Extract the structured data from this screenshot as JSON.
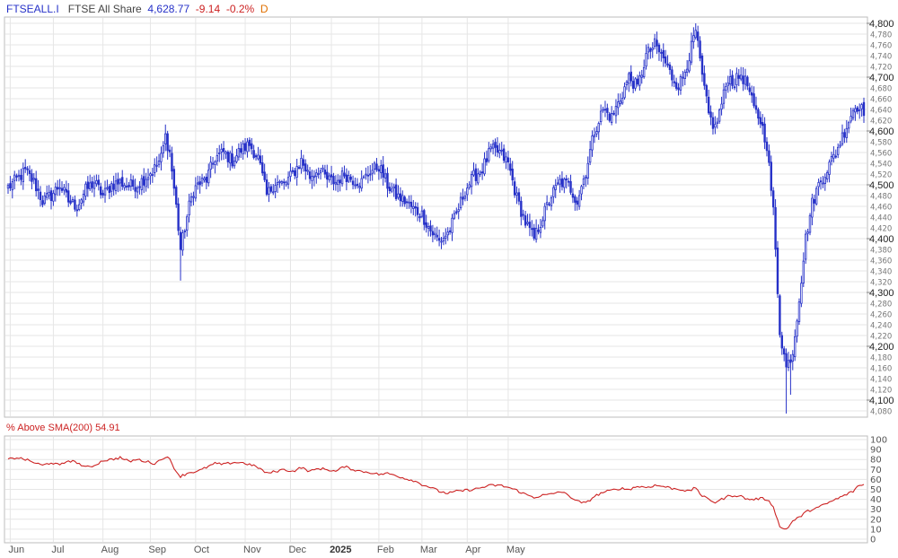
{
  "header": {
    "symbol": "FTSEALL.I",
    "name": "FTSE All Share",
    "last": "4,628.77",
    "change": "-9.14",
    "change_pct": "-0.2%",
    "period": "D"
  },
  "indicator": {
    "label": "% Above SMA(200)",
    "value": "54.91"
  },
  "colors": {
    "candle": "#2631c8",
    "indicator_line": "#cc2222",
    "grid": "#e6e6e6",
    "border": "#bdbdbd",
    "symbol_text": "#2631c8",
    "name_text": "#444444",
    "last_text": "#2631c8",
    "change_text": "#cc2222",
    "period_text": "#e07000"
  },
  "chart_data": [
    {
      "type": "candlestick",
      "series": [
        {
          "name": "FTSEALL.I",
          "close_path": [
            [
              0,
              4495
            ],
            [
              4,
              4510
            ],
            [
              8,
              4525
            ],
            [
              12,
              4505
            ],
            [
              16,
              4470
            ],
            [
              20,
              4480
            ],
            [
              24,
              4500
            ],
            [
              28,
              4470
            ],
            [
              32,
              4460
            ],
            [
              36,
              4490
            ],
            [
              40,
              4505
            ],
            [
              44,
              4480
            ],
            [
              48,
              4500
            ],
            [
              52,
              4505
            ],
            [
              56,
              4498
            ],
            [
              60,
              4500
            ],
            [
              64,
              4515
            ],
            [
              68,
              4530
            ],
            [
              71,
              4550
            ],
            [
              73,
              4590
            ],
            [
              75,
              4560
            ],
            [
              78,
              4460
            ],
            [
              80,
              4380
            ],
            [
              82,
              4420
            ],
            [
              84,
              4460
            ],
            [
              86,
              4490
            ],
            [
              88,
              4500
            ],
            [
              92,
              4510
            ],
            [
              96,
              4550
            ],
            [
              100,
              4560
            ],
            [
              104,
              4545
            ],
            [
              108,
              4565
            ],
            [
              112,
              4575
            ],
            [
              116,
              4550
            ],
            [
              120,
              4480
            ],
            [
              124,
              4505
            ],
            [
              128,
              4500
            ],
            [
              132,
              4520
            ],
            [
              136,
              4545
            ],
            [
              140,
              4515
            ],
            [
              144,
              4530
            ],
            [
              148,
              4510
            ],
            [
              152,
              4505
            ],
            [
              156,
              4520
            ],
            [
              160,
              4510
            ],
            [
              164,
              4505
            ],
            [
              168,
              4525
            ],
            [
              172,
              4535
            ],
            [
              176,
              4500
            ],
            [
              180,
              4480
            ],
            [
              184,
              4470
            ],
            [
              188,
              4455
            ],
            [
              192,
              4445
            ],
            [
              196,
              4415
            ],
            [
              200,
              4395
            ],
            [
              204,
              4410
            ],
            [
              208,
              4445
            ],
            [
              212,
              4490
            ],
            [
              216,
              4515
            ],
            [
              220,
              4530
            ],
            [
              224,
              4565
            ],
            [
              228,
              4560
            ],
            [
              232,
              4540
            ],
            [
              236,
              4475
            ],
            [
              240,
              4430
            ],
            [
              244,
              4400
            ],
            [
              248,
              4440
            ],
            [
              252,
              4480
            ],
            [
              256,
              4505
            ],
            [
              260,
              4500
            ],
            [
              264,
              4470
            ],
            [
              268,
              4525
            ],
            [
              272,
              4600
            ],
            [
              276,
              4640
            ],
            [
              280,
              4625
            ],
            [
              284,
              4660
            ],
            [
              288,
              4700
            ],
            [
              292,
              4680
            ],
            [
              296,
              4740
            ],
            [
              300,
              4760
            ],
            [
              304,
              4735
            ],
            [
              308,
              4700
            ],
            [
              311,
              4685
            ],
            [
              313,
              4700
            ],
            [
              316,
              4740
            ],
            [
              319,
              4785
            ],
            [
              322,
              4700
            ],
            [
              325,
              4630
            ],
            [
              328,
              4605
            ],
            [
              331,
              4650
            ],
            [
              334,
              4700
            ],
            [
              337,
              4690
            ],
            [
              340,
              4705
            ],
            [
              343,
              4685
            ],
            [
              346,
              4640
            ],
            [
              349,
              4620
            ],
            [
              352,
              4575
            ],
            [
              355,
              4450
            ],
            [
              358,
              4230
            ],
            [
              361,
              4160
            ],
            [
              364,
              4190
            ],
            [
              367,
              4290
            ],
            [
              370,
              4400
            ],
            [
              373,
              4465
            ],
            [
              376,
              4500
            ],
            [
              380,
              4530
            ],
            [
              384,
              4560
            ],
            [
              388,
              4600
            ],
            [
              392,
              4640
            ],
            [
              395,
              4650
            ],
            [
              397,
              4628.77
            ]
          ],
          "last_close": 4628.77,
          "day_low": 4075,
          "period_high": 4800
        }
      ],
      "x_tick_labels": [
        "Jun",
        "Jul",
        "Aug",
        "Sep",
        "Oct",
        "Nov",
        "Dec",
        "2025",
        "Feb",
        "Mar",
        "Apr",
        "May"
      ],
      "y_range": [
        4070,
        4810
      ],
      "y_major_ticks": [
        "4,100",
        "4,200",
        "4,300",
        "4,400",
        "4,500",
        "4,600",
        "4,700",
        "4,800"
      ],
      "y_minor_ticks": [
        "4,080",
        "4,120",
        "4,140",
        "4,160",
        "4,180",
        "4,220",
        "4,240",
        "4,260",
        "4,280",
        "4,320",
        "4,340",
        "4,360",
        "4,380",
        "4,420",
        "4,440",
        "4,460",
        "4,480",
        "4,520",
        "4,540",
        "4,560",
        "4,580",
        "4,620",
        "4,640",
        "4,660",
        "4,680",
        "4,720",
        "4,740",
        "4,760",
        "4,780"
      ],
      "grid": true
    },
    {
      "type": "line",
      "series": [
        {
          "name": "% Above SMA(200)",
          "path": [
            [
              0,
              80
            ],
            [
              4,
              82
            ],
            [
              8,
              80
            ],
            [
              12,
              77
            ],
            [
              16,
              74
            ],
            [
              20,
              77
            ],
            [
              24,
              74
            ],
            [
              28,
              79
            ],
            [
              32,
              77
            ],
            [
              36,
              72
            ],
            [
              40,
              74
            ],
            [
              44,
              79
            ],
            [
              48,
              80
            ],
            [
              52,
              82
            ],
            [
              56,
              78
            ],
            [
              60,
              80
            ],
            [
              64,
              78
            ],
            [
              68,
              76
            ],
            [
              71,
              80
            ],
            [
              73,
              83
            ],
            [
              75,
              80
            ],
            [
              78,
              68
            ],
            [
              80,
              63
            ],
            [
              84,
              67
            ],
            [
              88,
              68
            ],
            [
              92,
              72
            ],
            [
              96,
              76
            ],
            [
              100,
              75
            ],
            [
              104,
              77
            ],
            [
              108,
              77
            ],
            [
              112,
              75
            ],
            [
              116,
              72
            ],
            [
              120,
              66
            ],
            [
              124,
              68
            ],
            [
              128,
              70
            ],
            [
              132,
              68
            ],
            [
              136,
              72
            ],
            [
              140,
              68
            ],
            [
              144,
              71
            ],
            [
              148,
              70
            ],
            [
              152,
              68
            ],
            [
              156,
              73
            ],
            [
              160,
              70
            ],
            [
              164,
              68
            ],
            [
              168,
              67
            ],
            [
              172,
              65
            ],
            [
              176,
              66
            ],
            [
              180,
              64
            ],
            [
              184,
              61
            ],
            [
              188,
              59
            ],
            [
              192,
              55
            ],
            [
              196,
              52
            ],
            [
              200,
              48
            ],
            [
              204,
              46
            ],
            [
              208,
              48
            ],
            [
              212,
              49
            ],
            [
              216,
              50
            ],
            [
              220,
              52
            ],
            [
              224,
              54
            ],
            [
              228,
              54
            ],
            [
              232,
              52
            ],
            [
              236,
              49
            ],
            [
              240,
              45
            ],
            [
              244,
              42
            ],
            [
              248,
              44
            ],
            [
              252,
              45
            ],
            [
              256,
              48
            ],
            [
              260,
              44
            ],
            [
              264,
              38
            ],
            [
              268,
              36
            ],
            [
              272,
              43
            ],
            [
              276,
              47
            ],
            [
              280,
              49
            ],
            [
              284,
              51
            ],
            [
              288,
              50
            ],
            [
              292,
              53
            ],
            [
              296,
              52
            ],
            [
              300,
              54
            ],
            [
              304,
              53
            ],
            [
              308,
              51
            ],
            [
              312,
              50
            ],
            [
              316,
              48
            ],
            [
              319,
              52
            ],
            [
              322,
              43
            ],
            [
              325,
              40
            ],
            [
              328,
              37
            ],
            [
              331,
              40
            ],
            [
              334,
              43
            ],
            [
              337,
              44
            ],
            [
              340,
              43
            ],
            [
              343,
              40
            ],
            [
              346,
              40
            ],
            [
              349,
              41
            ],
            [
              352,
              40
            ],
            [
              355,
              33
            ],
            [
              358,
              12
            ],
            [
              361,
              10
            ],
            [
              364,
              18
            ],
            [
              367,
              22
            ],
            [
              370,
              27
            ],
            [
              373,
              30
            ],
            [
              376,
              32
            ],
            [
              380,
              36
            ],
            [
              384,
              40
            ],
            [
              388,
              44
            ],
            [
              392,
              48
            ],
            [
              394,
              53
            ],
            [
              397,
              54.91
            ]
          ]
        }
      ],
      "y_range": [
        0,
        100
      ],
      "y_ticks": [
        "0",
        "10",
        "20",
        "30",
        "40",
        "50",
        "60",
        "70",
        "80",
        "90",
        "100"
      ],
      "grid": true
    }
  ]
}
